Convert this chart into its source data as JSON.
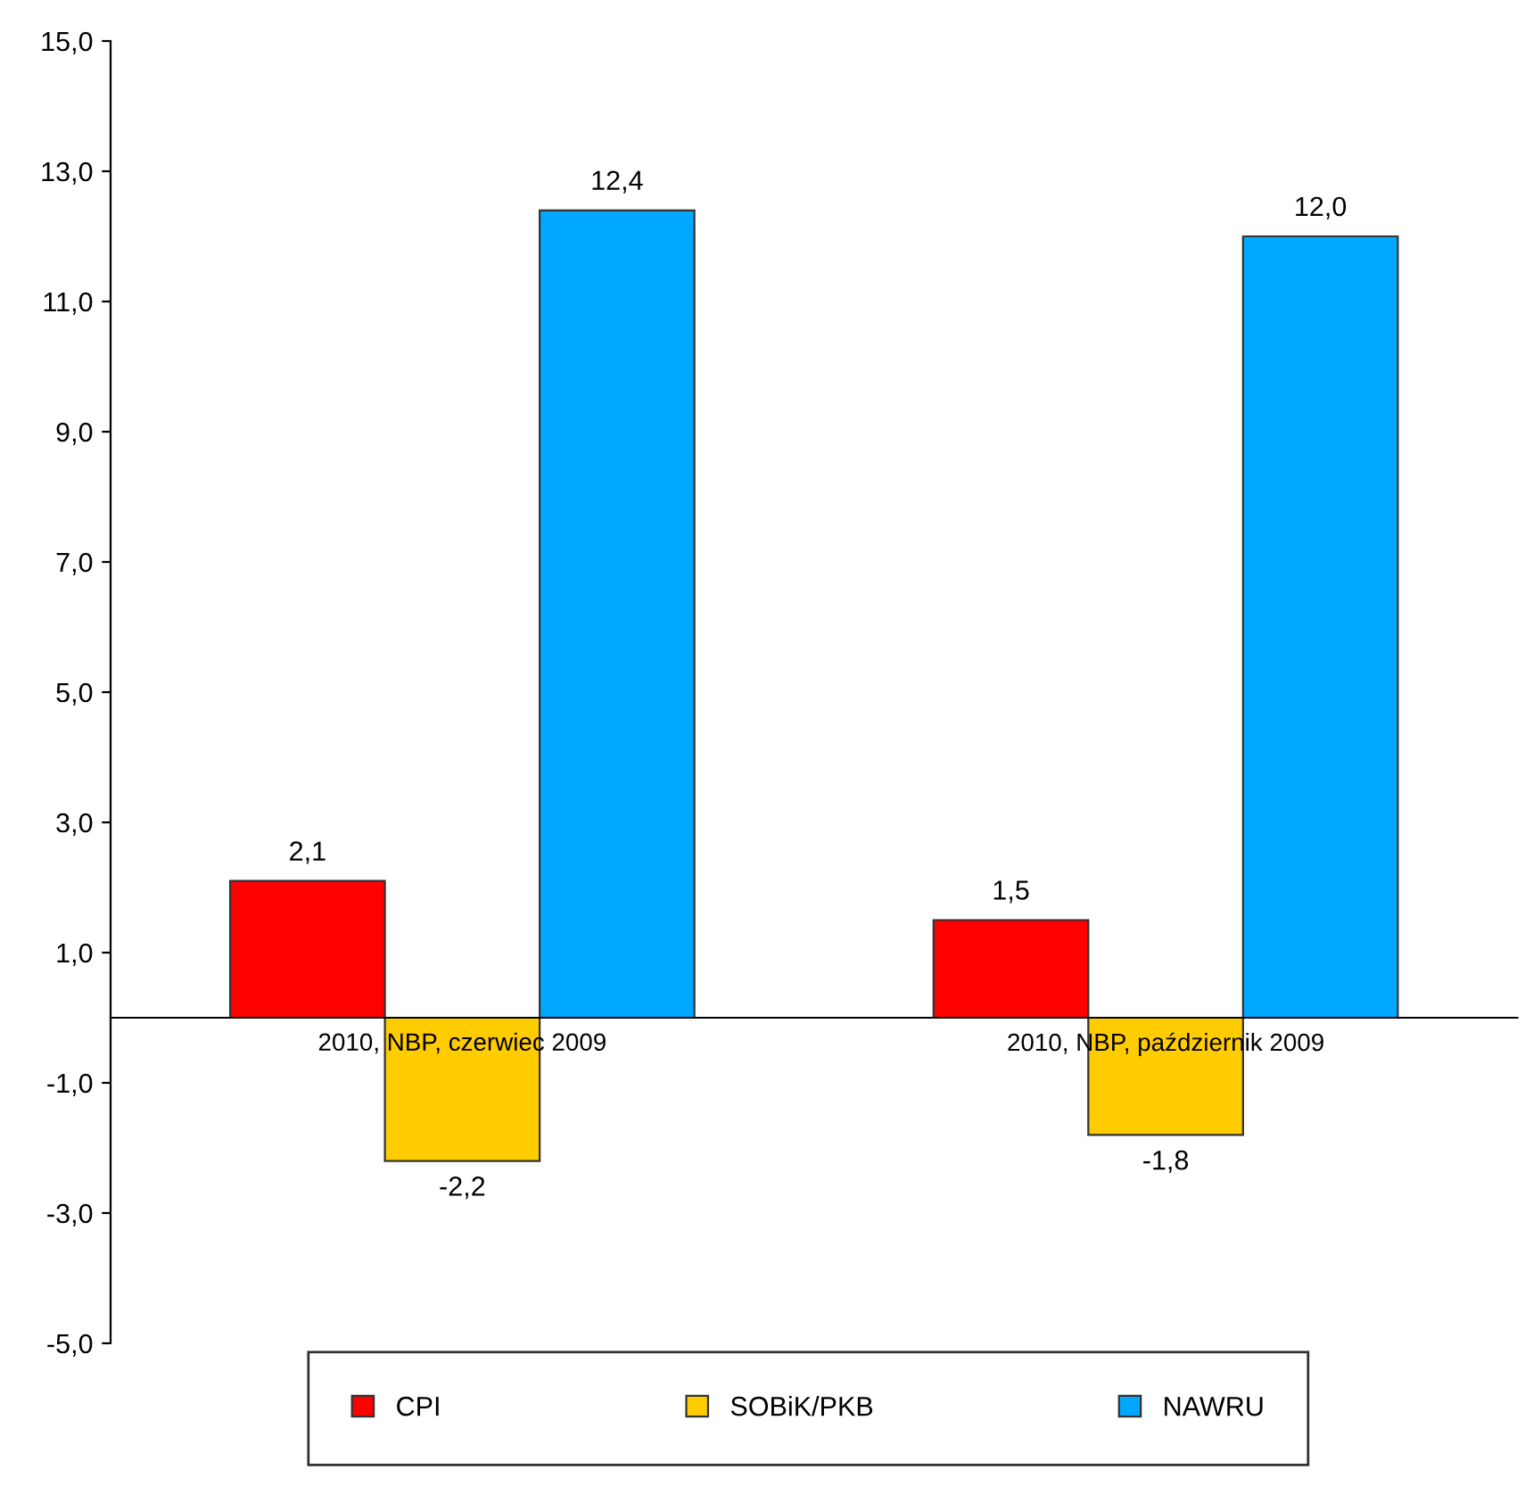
{
  "chart_data": {
    "type": "bar",
    "categories": [
      "2010, NBP, czerwiec 2009",
      "2010, NBP, październik 2009"
    ],
    "series": [
      {
        "name": "CPI",
        "color": "#ff0000",
        "values": [
          2.1,
          1.5
        ],
        "value_labels": [
          "2,1",
          "1,5"
        ]
      },
      {
        "name": "SOBiK/PKB",
        "color": "#ffcc00",
        "values": [
          -2.2,
          -1.8
        ],
        "value_labels": [
          "-2,2",
          "-1,8"
        ]
      },
      {
        "name": "NAWRU",
        "color": "#00a8ff",
        "values": [
          12.4,
          12.0
        ],
        "value_labels": [
          "12,4",
          "12,0"
        ]
      }
    ],
    "ylim": [
      -5,
      15
    ],
    "yticks": [
      {
        "value": -5,
        "label": "-5,0"
      },
      {
        "value": -3,
        "label": "-3,0"
      },
      {
        "value": -1,
        "label": "-1,0"
      },
      {
        "value": 1,
        "label": "1,0"
      },
      {
        "value": 3,
        "label": "3,0"
      },
      {
        "value": 5,
        "label": "5,0"
      },
      {
        "value": 7,
        "label": "7,0"
      },
      {
        "value": 9,
        "label": "9,0"
      },
      {
        "value": 11,
        "label": "11,0"
      },
      {
        "value": 13,
        "label": "13,0"
      },
      {
        "value": 15,
        "label": "15,0"
      }
    ],
    "legend": "bottom",
    "grid": false
  }
}
